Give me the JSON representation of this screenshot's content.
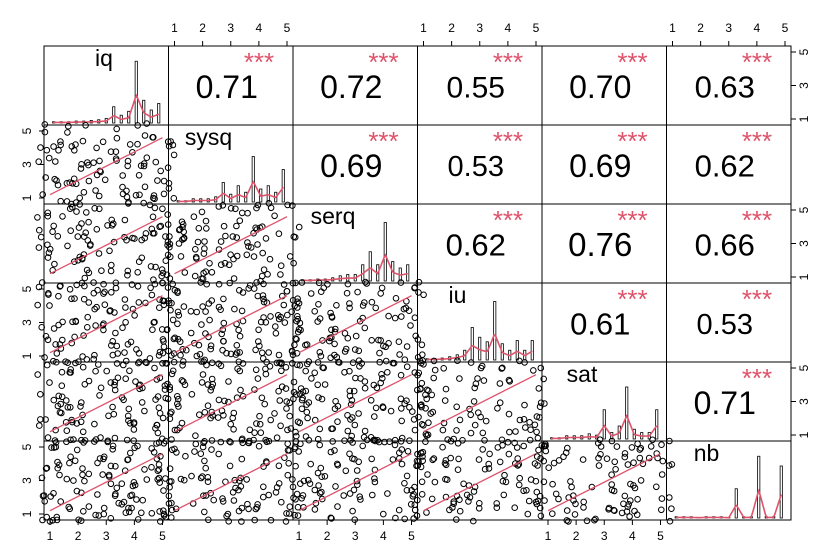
{
  "chart_data": {
    "type": "scatter-matrix",
    "variables": [
      "iq",
      "sysq",
      "serq",
      "iu",
      "sat",
      "nb"
    ],
    "tick_labels": [
      "1",
      "2",
      "3",
      "4",
      "5"
    ],
    "left_tick_labels": [
      "1",
      "3",
      "5"
    ],
    "right_tick_labels": [
      "1",
      "3",
      "5"
    ],
    "axis_range": [
      1,
      5
    ],
    "significance": "***",
    "correlations": [
      {
        "row": "iq",
        "col": "sysq",
        "value": "0.71"
      },
      {
        "row": "iq",
        "col": "serq",
        "value": "0.72"
      },
      {
        "row": "iq",
        "col": "iu",
        "value": "0.55"
      },
      {
        "row": "iq",
        "col": "sat",
        "value": "0.70"
      },
      {
        "row": "iq",
        "col": "nb",
        "value": "0.63"
      },
      {
        "row": "sysq",
        "col": "serq",
        "value": "0.69"
      },
      {
        "row": "sysq",
        "col": "iu",
        "value": "0.53"
      },
      {
        "row": "sysq",
        "col": "sat",
        "value": "0.69"
      },
      {
        "row": "sysq",
        "col": "nb",
        "value": "0.62"
      },
      {
        "row": "serq",
        "col": "iu",
        "value": "0.62"
      },
      {
        "row": "serq",
        "col": "sat",
        "value": "0.76"
      },
      {
        "row": "serq",
        "col": "nb",
        "value": "0.66"
      },
      {
        "row": "iu",
        "col": "sat",
        "value": "0.61"
      },
      {
        "row": "iu",
        "col": "nb",
        "value": "0.53"
      },
      {
        "row": "sat",
        "col": "nb",
        "value": "0.71"
      }
    ],
    "histograms": {
      "iq": [
        0.02,
        0.02,
        0.02,
        0.03,
        0.03,
        0.04,
        0.05,
        0.07,
        0.25,
        0.12,
        0.18,
        0.95,
        0.35,
        0.2,
        0.3
      ],
      "sysq": [
        0.02,
        0.02,
        0.05,
        0.05,
        0.05,
        0.08,
        0.3,
        0.12,
        0.25,
        0.15,
        0.7,
        0.2,
        0.25,
        0.15,
        0.5
      ],
      "serq": [
        0.02,
        0.02,
        0.03,
        0.03,
        0.05,
        0.08,
        0.1,
        0.1,
        0.25,
        0.45,
        0.25,
        0.9,
        0.3,
        0.2,
        0.25
      ],
      "iu": [
        0.02,
        0.02,
        0.03,
        0.05,
        0.08,
        0.15,
        0.5,
        0.35,
        0.28,
        0.9,
        0.25,
        0.15,
        0.3,
        0.15,
        0.3
      ],
      "sat": [
        0.02,
        0.02,
        0.05,
        0.05,
        0.05,
        0.08,
        0.06,
        0.45,
        0.1,
        0.2,
        0.8,
        0.15,
        0.1,
        0.1,
        0.45
      ],
      "nb": [
        0.02,
        0.02,
        0.02,
        0.01,
        0.02,
        0.02,
        0.02,
        0.01,
        0.45,
        0.02,
        0.02,
        0.95,
        0.02,
        0.02,
        0.8
      ]
    }
  }
}
